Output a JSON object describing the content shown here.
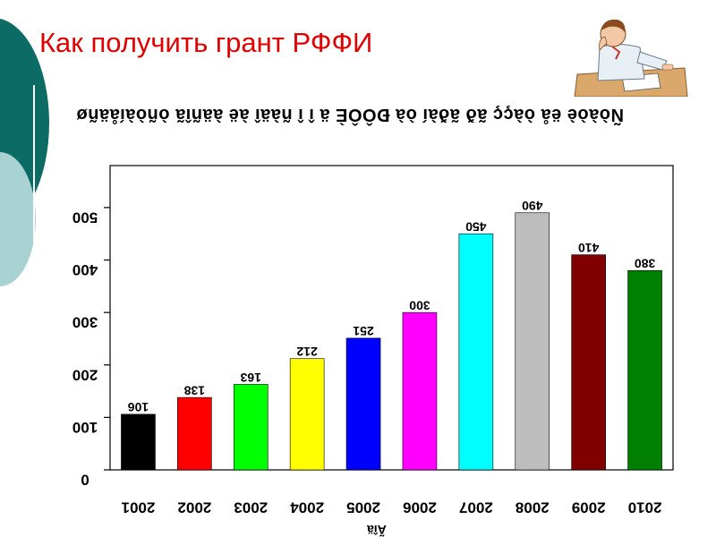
{
  "slide": {
    "title": "Как получить грант РФФИ"
  },
  "chart_data": {
    "type": "bar",
    "title": "Ñòàòè ëå òàçç ãð ãðàí òà ÐÔÔÈ ä î î ñàäî àë àäñîã òñòàíåäñø",
    "xlabel": "Ãîä",
    "ylabel": "",
    "categories": [
      "2001",
      "2002",
      "2003",
      "2004",
      "2005",
      "2006",
      "2007",
      "2008",
      "2009",
      "2010"
    ],
    "values": [
      106,
      138,
      163,
      212,
      251,
      300,
      450,
      490,
      410,
      380
    ],
    "value_labels": [
      "106",
      "138",
      "163",
      "212",
      "251",
      "300",
      "450",
      "490",
      "410",
      "380"
    ],
    "colors": [
      "#000000",
      "#ff0000",
      "#00ff00",
      "#ffff00",
      "#0000ff",
      "#ff00ff",
      "#00ffff",
      "#bdbdbd",
      "#800000",
      "#008000"
    ],
    "yticks": [
      0,
      100,
      200,
      300,
      400,
      500
    ],
    "ylim": [
      0,
      580
    ],
    "grid": false,
    "legend": "none",
    "text_orientation": "upside-down"
  }
}
